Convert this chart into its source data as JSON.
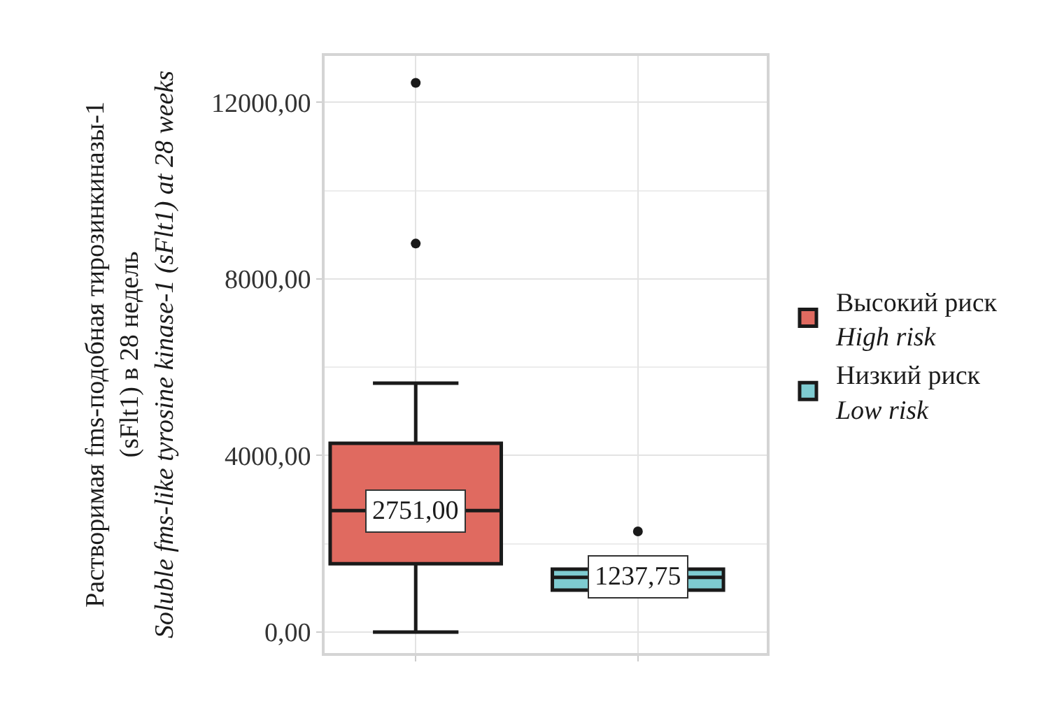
{
  "chart_data": {
    "type": "box",
    "ylabel": "Растворимая fms-подобная тирозинкиназы-1\n(sFlt1) в 28 недель\nSoluble fms-like tyrosine kinase-1 (sFlt1) at 28 weeks",
    "categories": [
      null,
      null
    ],
    "series": [
      {
        "name": "Высокий риск\nHigh risk",
        "color": "#e06a60",
        "boxes": [
          {
            "low": 0,
            "q1": 1550,
            "median": 2751,
            "q3": 4275,
            "high": 5640,
            "outliers": [
              8800,
              12440
            ]
          },
          null
        ]
      },
      {
        "name": "Низкий риск\nLow risk",
        "color": "#7ecbd1",
        "boxes": [
          null,
          {
            "low": 850,
            "q1": 950,
            "median": 1237.75,
            "q3": 1425,
            "high": 1650,
            "outliers": [
              2280
            ]
          }
        ]
      }
    ],
    "annotations": [
      {
        "text": "2751,00",
        "y": 2751
      },
      {
        "text": "1237,75",
        "y": 1237.75
      }
    ],
    "ylim": [
      -475,
      13050
    ],
    "yticks": [
      {
        "value": 0,
        "label": "0,00"
      },
      {
        "value": 4000,
        "label": "4000,00"
      },
      {
        "value": 8000,
        "label": "8000,00"
      },
      {
        "value": 12000,
        "label": "12000,00"
      }
    ],
    "grid": true,
    "legend": "right",
    "tick_labels": "y"
  }
}
